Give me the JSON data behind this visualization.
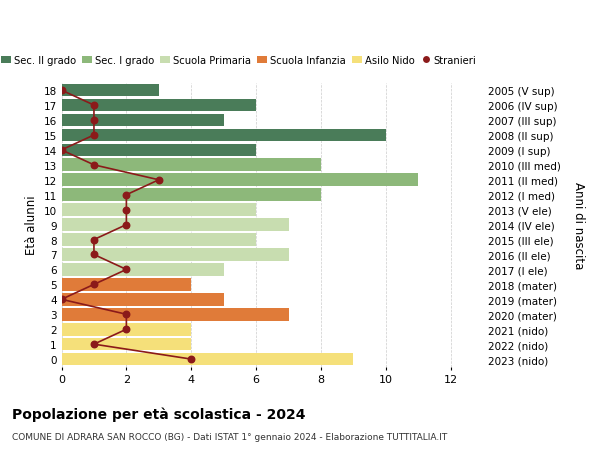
{
  "ages": [
    18,
    17,
    16,
    15,
    14,
    13,
    12,
    11,
    10,
    9,
    8,
    7,
    6,
    5,
    4,
    3,
    2,
    1,
    0
  ],
  "years": [
    "2005 (V sup)",
    "2006 (IV sup)",
    "2007 (III sup)",
    "2008 (II sup)",
    "2009 (I sup)",
    "2010 (III med)",
    "2011 (II med)",
    "2012 (I med)",
    "2013 (V ele)",
    "2014 (IV ele)",
    "2015 (III ele)",
    "2016 (II ele)",
    "2017 (I ele)",
    "2018 (mater)",
    "2019 (mater)",
    "2020 (mater)",
    "2021 (nido)",
    "2022 (nido)",
    "2023 (nido)"
  ],
  "bar_values": [
    3,
    6,
    5,
    10,
    6,
    8,
    11,
    8,
    6,
    7,
    6,
    7,
    5,
    4,
    5,
    7,
    4,
    4,
    9
  ],
  "bar_colors": [
    "#4a7c59",
    "#4a7c59",
    "#4a7c59",
    "#4a7c59",
    "#4a7c59",
    "#8db87a",
    "#8db87a",
    "#8db87a",
    "#c8ddb0",
    "#c8ddb0",
    "#c8ddb0",
    "#c8ddb0",
    "#c8ddb0",
    "#e07b39",
    "#e07b39",
    "#e07b39",
    "#f5e07a",
    "#f5e07a",
    "#f5e07a"
  ],
  "stranieri_values": [
    0,
    1,
    1,
    1,
    0,
    1,
    3,
    2,
    2,
    2,
    1,
    1,
    2,
    1,
    0,
    2,
    2,
    1,
    4
  ],
  "stranieri_color": "#8b1a1a",
  "ylabel_left": "Età alunni",
  "ylabel_right": "Anni di nascita",
  "xlim": [
    0,
    13
  ],
  "ylim_min": -0.5,
  "ylim_max": 18.5,
  "title": "Popolazione per età scolastica - 2024",
  "subtitle": "COMUNE DI ADRARA SAN ROCCO (BG) - Dati ISTAT 1° gennaio 2024 - Elaborazione TUTTITALIA.IT",
  "legend_labels": [
    "Sec. II grado",
    "Sec. I grado",
    "Scuola Primaria",
    "Scuola Infanzia",
    "Asilo Nido",
    "Stranieri"
  ],
  "legend_colors": [
    "#4a7c59",
    "#8db87a",
    "#c8ddb0",
    "#e07b39",
    "#f5e07a",
    "#8b1a1a"
  ],
  "grid_color": "#cccccc",
  "bg_color": "#ffffff"
}
